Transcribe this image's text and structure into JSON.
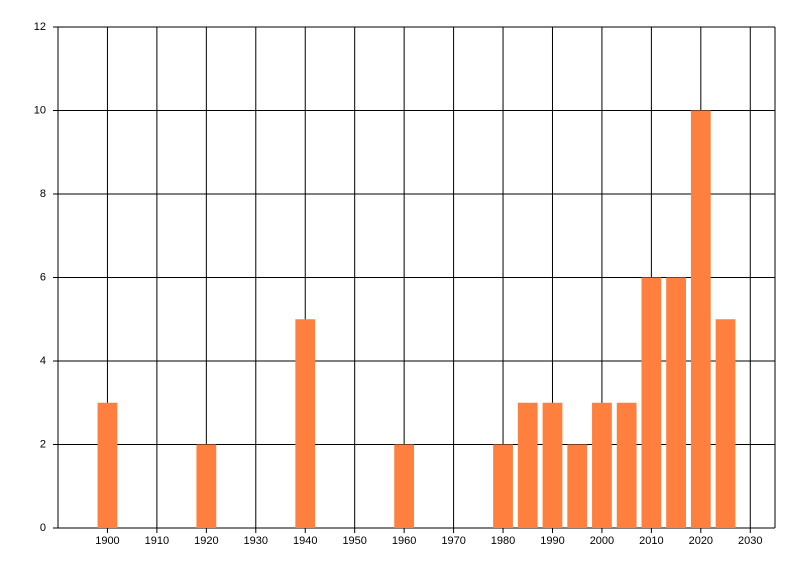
{
  "chart_data": {
    "type": "bar",
    "x": [
      1900,
      1920,
      1940,
      1960,
      1980,
      1985,
      1990,
      1995,
      2000,
      2005,
      2010,
      2015,
      2020,
      2025
    ],
    "values": [
      3,
      2,
      5,
      2,
      2,
      3,
      3,
      2,
      3,
      3,
      6,
      6,
      10,
      5
    ],
    "color": "#ff7f3f",
    "xlim": [
      1890,
      2035
    ],
    "xticks": [
      1900,
      1910,
      1920,
      1930,
      1940,
      1950,
      1960,
      1970,
      1980,
      1990,
      2000,
      2010,
      2020,
      2030
    ],
    "ylim": [
      0,
      12
    ],
    "yticks": [
      0,
      2,
      4,
      6,
      8,
      10,
      12
    ],
    "grid": true
  }
}
